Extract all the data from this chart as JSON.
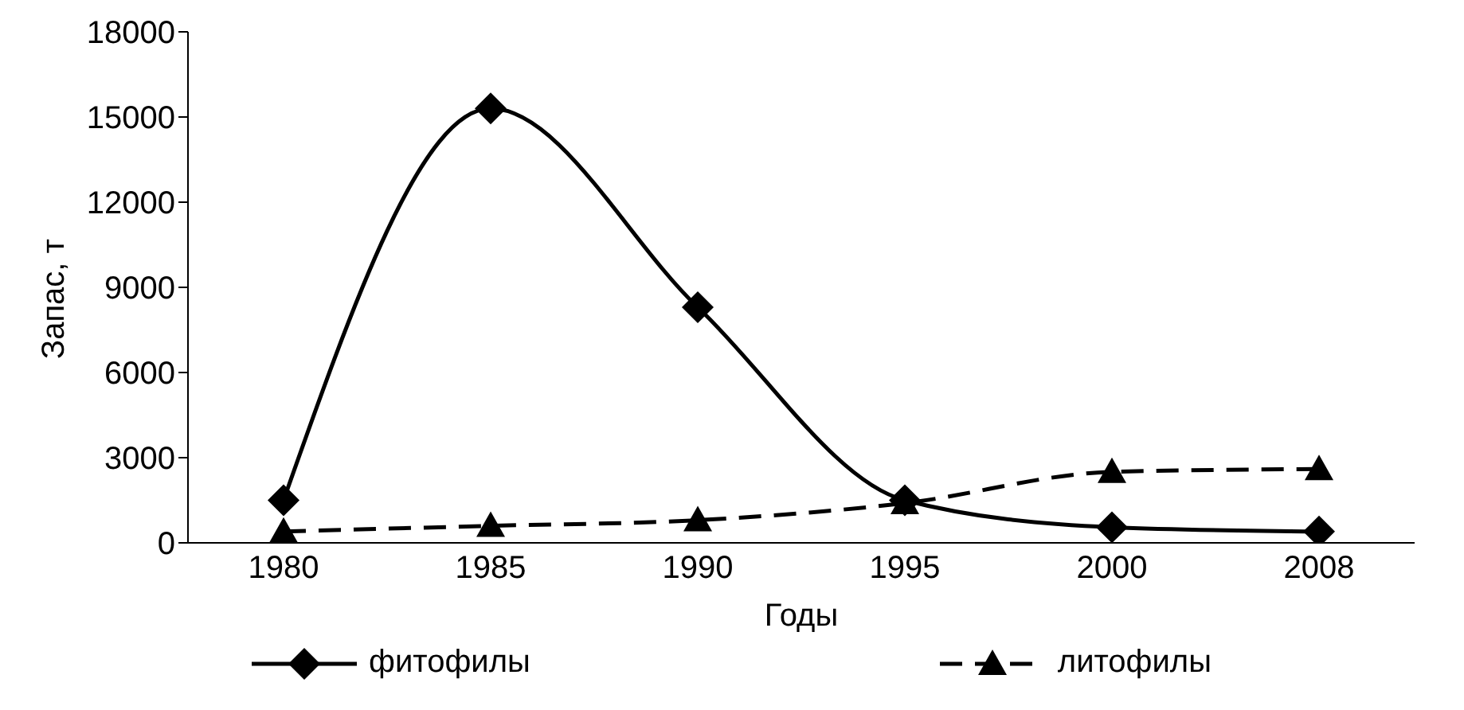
{
  "chart_data": {
    "type": "line",
    "xlabel": "Годы",
    "ylabel": "Запас, т",
    "categories": [
      "1980",
      "1985",
      "1990",
      "1995",
      "2000",
      "2008"
    ],
    "series": [
      {
        "name": "фитофилы",
        "color": "#000000",
        "marker": "diamond",
        "line_style": "solid",
        "values": [
          1500,
          15300,
          8300,
          1500,
          550,
          400
        ]
      },
      {
        "name": "литофилы",
        "color": "#000000",
        "marker": "triangle",
        "line_style": "dashed",
        "values": [
          400,
          600,
          800,
          1400,
          2500,
          2600
        ]
      }
    ],
    "ylim": [
      0,
      18000
    ],
    "yticks": [
      0,
      3000,
      6000,
      9000,
      12000,
      15000,
      18000
    ],
    "grid": false,
    "legend": "bottom"
  }
}
